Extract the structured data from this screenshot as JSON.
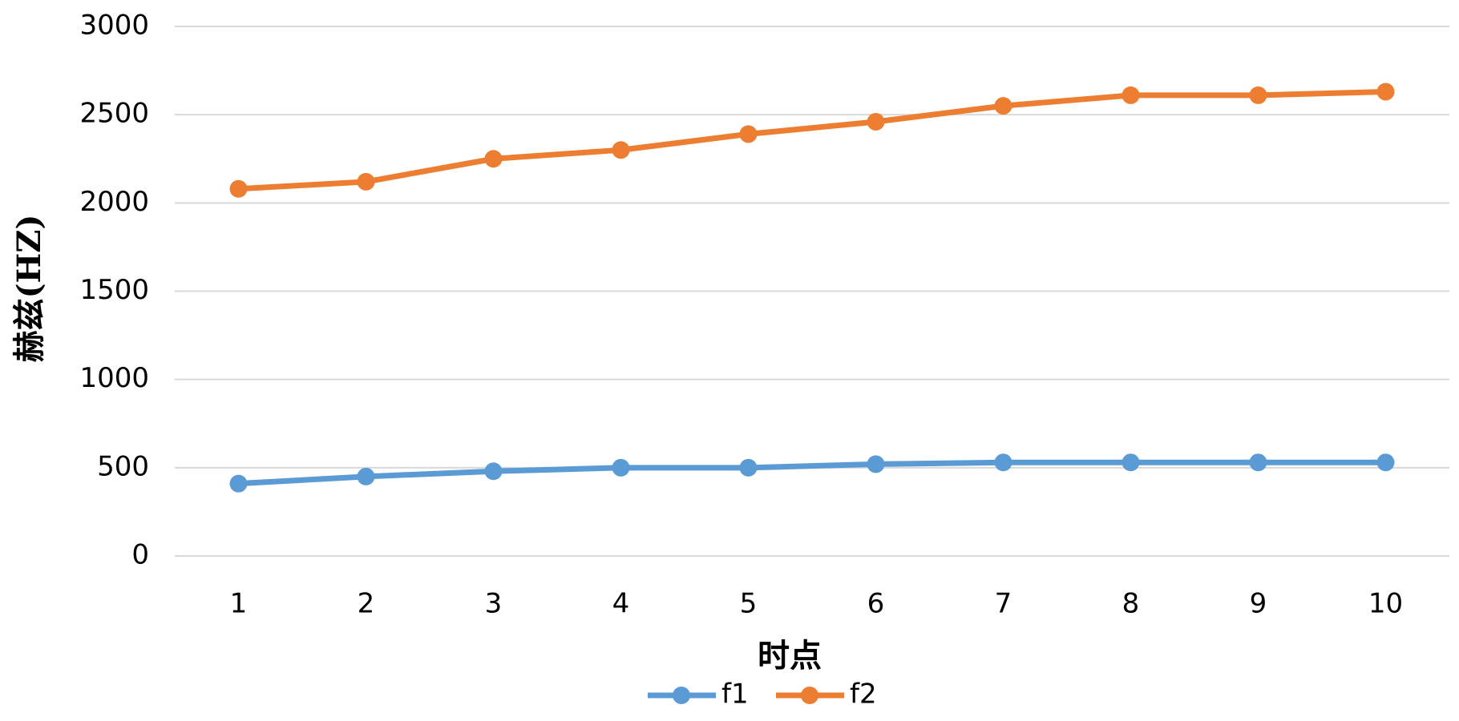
{
  "chart_data": {
    "type": "line",
    "x_label": "时点",
    "y_label": "赫兹(HZ)",
    "categories": [
      "1",
      "2",
      "3",
      "4",
      "5",
      "6",
      "7",
      "8",
      "9",
      "10"
    ],
    "series": [
      {
        "name": "f1",
        "color": "#5b9bd5",
        "values": [
          410,
          450,
          480,
          500,
          500,
          520,
          530,
          530,
          530,
          530
        ]
      },
      {
        "name": "f2",
        "color": "#ed7d31",
        "values": [
          2080,
          2120,
          2250,
          2300,
          2390,
          2460,
          2550,
          2610,
          2610,
          2630
        ]
      }
    ],
    "ylim": [
      0,
      3000
    ],
    "yticks": [
      0,
      500,
      1000,
      1500,
      2000,
      2500,
      3000
    ],
    "grid": true,
    "legend": "bottom"
  }
}
